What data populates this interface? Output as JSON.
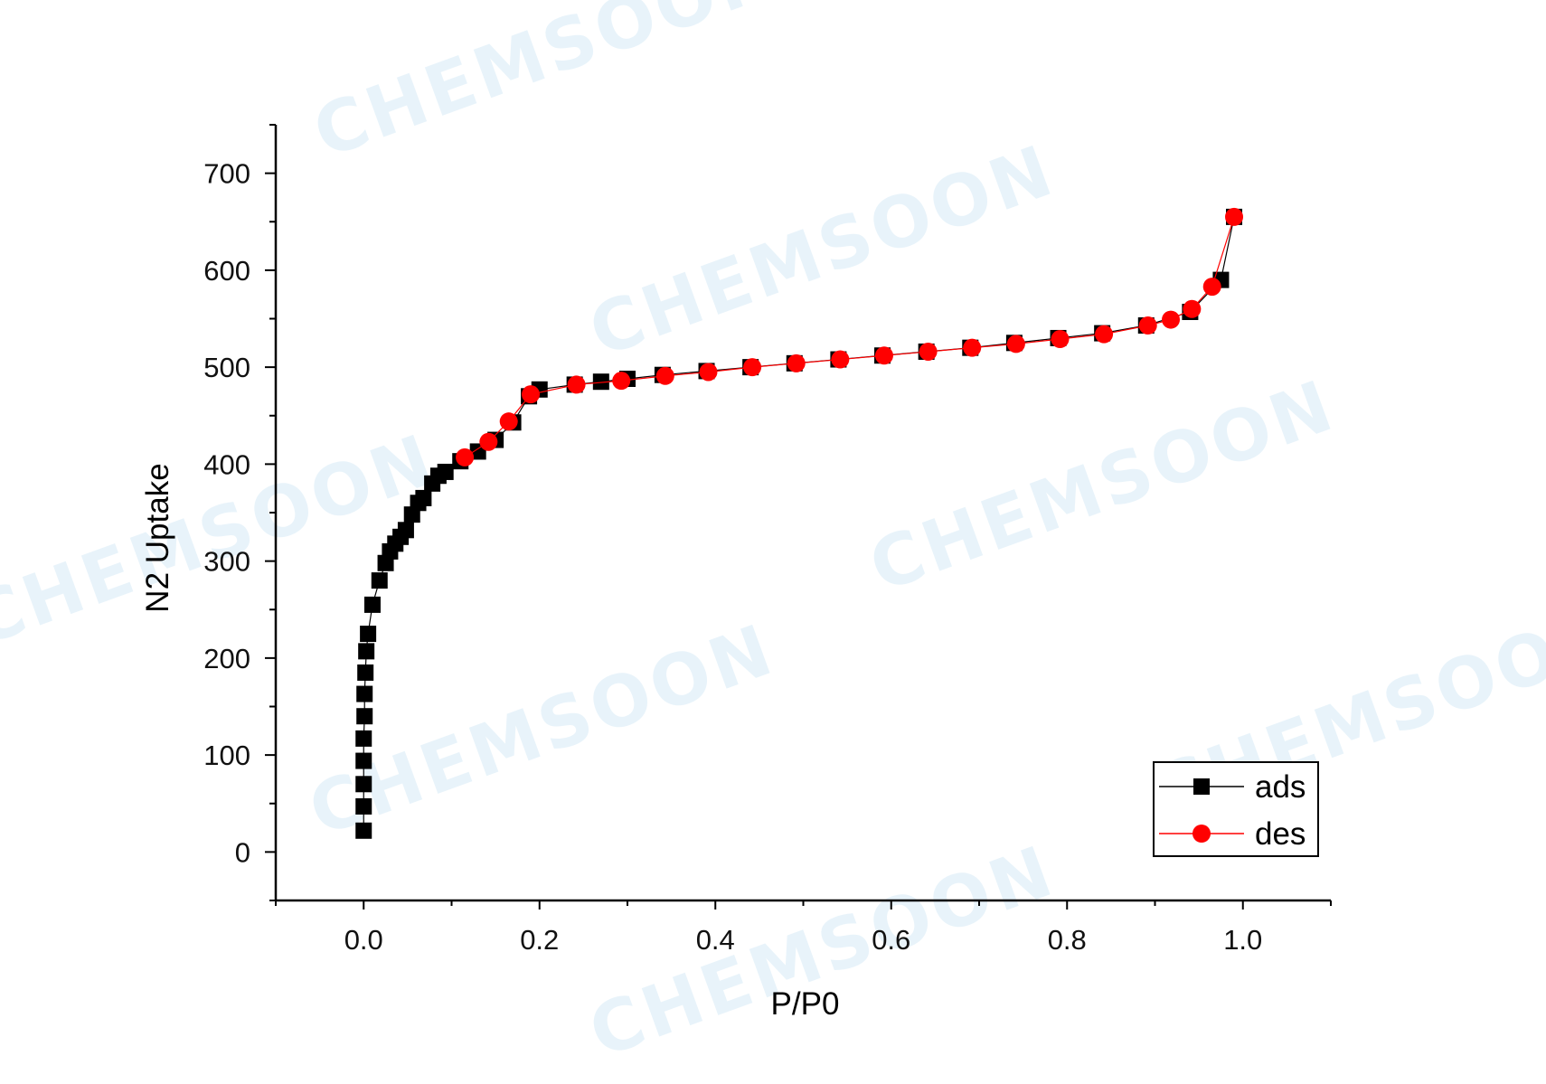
{
  "watermark_text": "CHEMSOON",
  "chart_data": {
    "type": "scatter",
    "title": "",
    "xlabel": "P/P0",
    "ylabel": "N2 Uptake",
    "xlim": [
      -0.1,
      1.1
    ],
    "ylim": [
      -50,
      750
    ],
    "xticks": [
      0.0,
      0.2,
      0.4,
      0.6,
      0.8,
      1.0
    ],
    "xtick_labels": [
      "0.0",
      "0.2",
      "0.4",
      "0.6",
      "0.8",
      "1.0"
    ],
    "yticks": [
      0,
      100,
      200,
      300,
      400,
      500,
      600,
      700
    ],
    "ytick_labels": [
      "0",
      "100",
      "200",
      "300",
      "400",
      "500",
      "600",
      "700"
    ],
    "grid": false,
    "legend_position": "bottom-right",
    "series": [
      {
        "name": "ads",
        "color": "#000000",
        "marker": "square",
        "x": [
          0.0,
          0.0,
          0.0,
          0.0,
          0.0,
          0.001,
          0.001,
          0.002,
          0.003,
          0.005,
          0.01,
          0.018,
          0.025,
          0.03,
          0.036,
          0.042,
          0.048,
          0.055,
          0.062,
          0.068,
          0.078,
          0.085,
          0.093,
          0.11,
          0.13,
          0.15,
          0.17,
          0.188,
          0.2,
          0.24,
          0.27,
          0.3,
          0.34,
          0.39,
          0.44,
          0.49,
          0.54,
          0.59,
          0.64,
          0.69,
          0.74,
          0.79,
          0.84,
          0.89,
          0.94,
          0.975,
          0.99
        ],
        "y": [
          22,
          47,
          70,
          94,
          117,
          140,
          163,
          185,
          207,
          225,
          255,
          280,
          298,
          310,
          318,
          325,
          332,
          348,
          360,
          365,
          380,
          388,
          392,
          403,
          413,
          425,
          443,
          470,
          477,
          482,
          485,
          488,
          492,
          496,
          500,
          504,
          508,
          512,
          516,
          520,
          525,
          530,
          535,
          543,
          557,
          590,
          655
        ]
      },
      {
        "name": "des",
        "color": "#ff0000",
        "marker": "circle",
        "x": [
          0.115,
          0.142,
          0.165,
          0.19,
          0.242,
          0.293,
          0.343,
          0.392,
          0.442,
          0.492,
          0.542,
          0.592,
          0.642,
          0.692,
          0.742,
          0.792,
          0.842,
          0.892,
          0.918,
          0.942,
          0.965,
          0.99
        ],
        "y": [
          407,
          423,
          444,
          472,
          482,
          486,
          491,
          495,
          500,
          504,
          508,
          512,
          516,
          520,
          524,
          529,
          534,
          543,
          549,
          560,
          583,
          655
        ]
      }
    ]
  }
}
